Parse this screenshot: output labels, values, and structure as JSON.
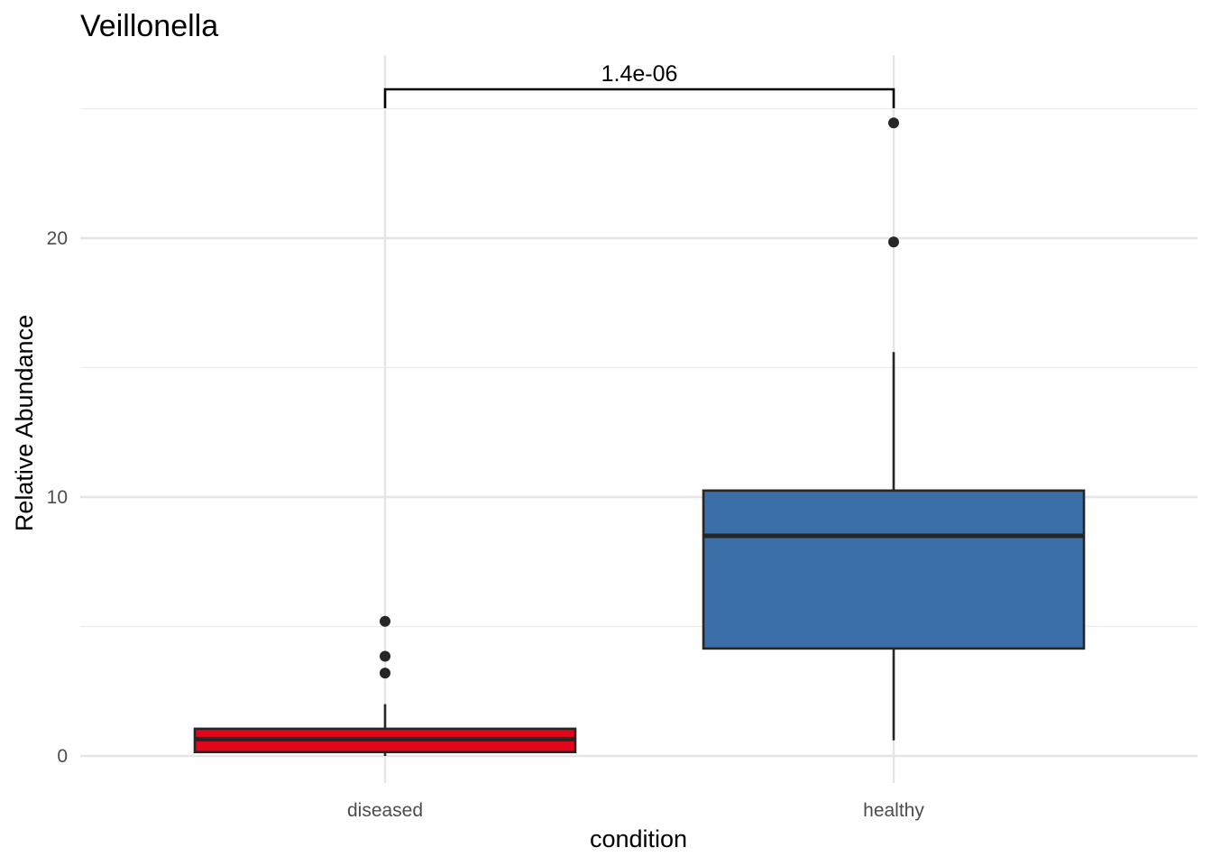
{
  "chart_data": {
    "type": "boxplot",
    "title": "Veillonella",
    "xlabel": "condition",
    "ylabel": "Relative Abundance",
    "categories": [
      "diseased",
      "healthy"
    ],
    "ylim": [
      -1,
      27.5
    ],
    "yticks": [
      0,
      10,
      20
    ],
    "yticklabels": [
      "0",
      "10",
      "20"
    ],
    "grid": true,
    "legend": "none",
    "boxes": [
      {
        "category": "diseased",
        "color": "#E3051A",
        "q1": 0.15,
        "median": 0.65,
        "q3": 1.05,
        "whisker_low": 0.0,
        "whisker_high": 2.0,
        "outliers": [
          3.2,
          3.85,
          5.2
        ]
      },
      {
        "category": "healthy",
        "color": "#3A6FA8",
        "q1": 4.15,
        "median": 8.5,
        "q3": 10.25,
        "whisker_low": 0.6,
        "whisker_high": 15.6,
        "outliers": [
          19.85,
          24.45
        ]
      }
    ],
    "annotations": [
      {
        "type": "significance_bracket",
        "from": "diseased",
        "to": "healthy",
        "label": "1.4e-06",
        "y": 25.0
      }
    ]
  }
}
